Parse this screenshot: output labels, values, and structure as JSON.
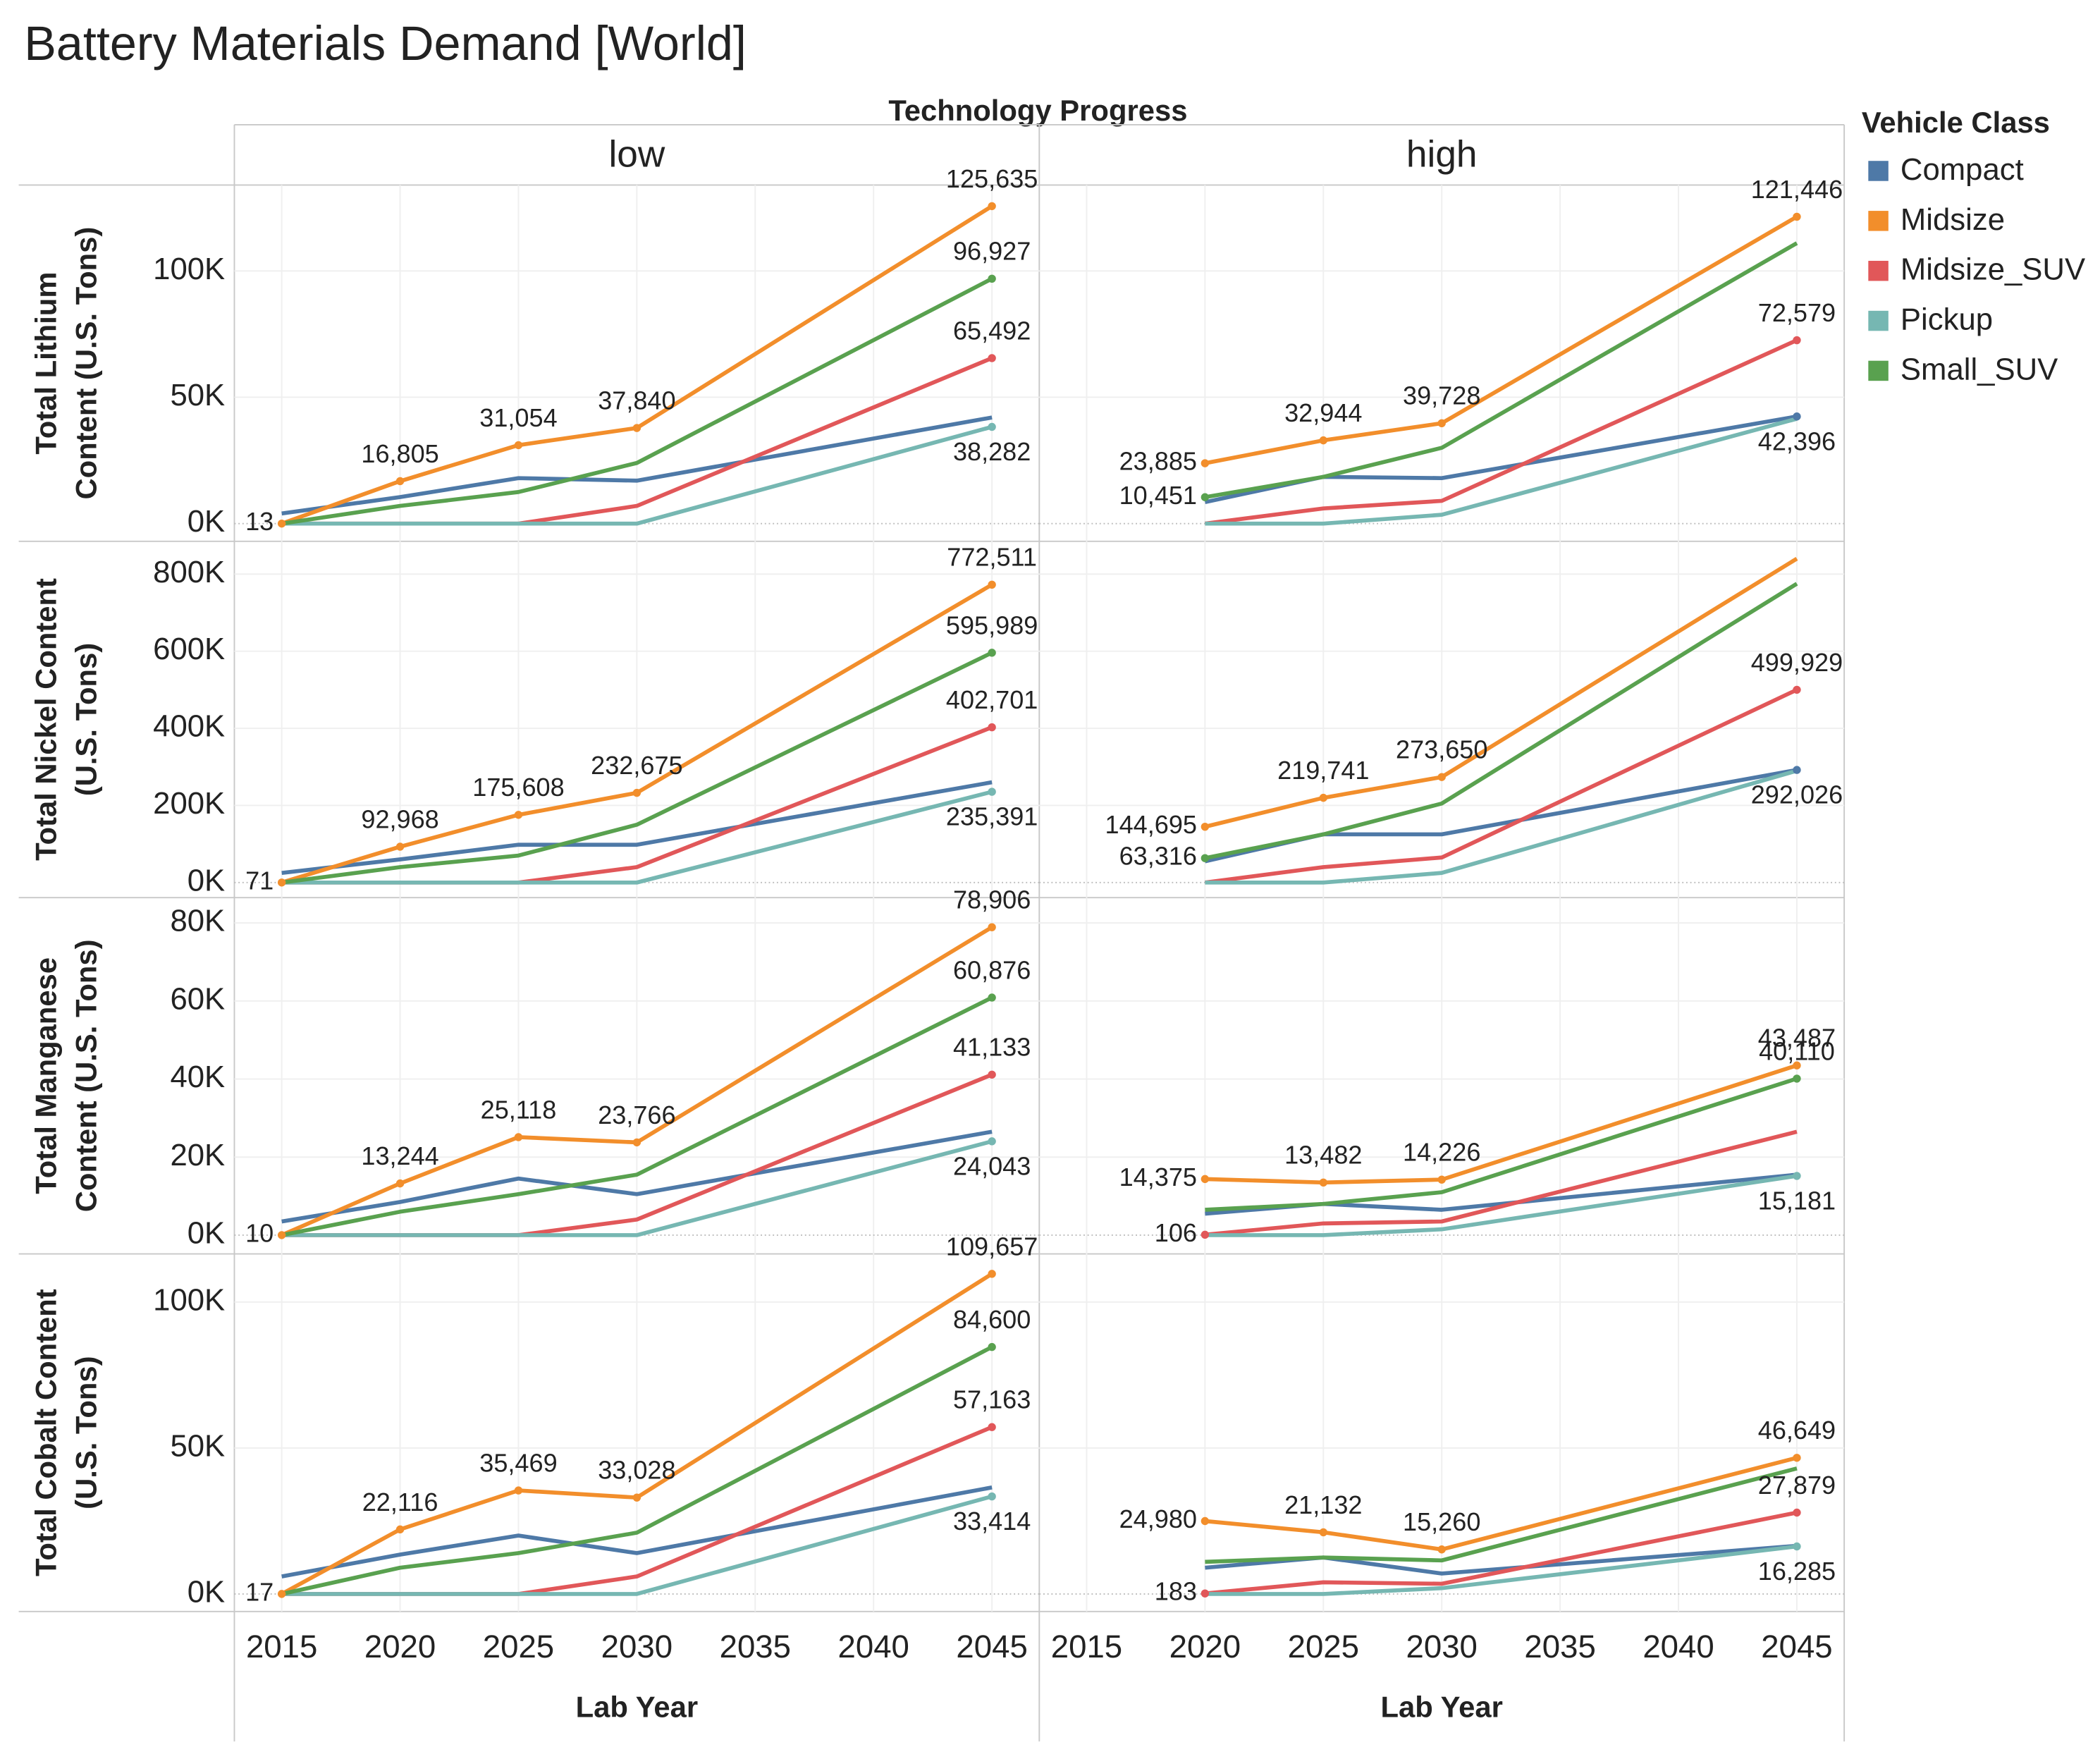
{
  "title": "Battery Materials Demand [World]",
  "column_title": "Technology Progress",
  "legend_title": "Vehicle Class",
  "chart_data": [
    {
      "type": "line",
      "title": "low",
      "y_label": [
        "Total Lithium",
        "Content (U.S. Tons)"
      ],
      "x": [
        2015,
        2020,
        2025,
        2030,
        2045
      ],
      "xlim": [
        2013,
        2047
      ],
      "xticks": [
        2015,
        2020,
        2025,
        2030,
        2035,
        2040,
        2045
      ],
      "ylim": [
        -7000,
        134000
      ],
      "yticks": [
        {
          "value": 0,
          "label": "0K"
        },
        {
          "value": 50000,
          "label": "50K"
        },
        {
          "value": 100000,
          "label": "100K"
        }
      ],
      "series": [
        {
          "name": "Compact",
          "color": "#4e79a7",
          "values": [
            4000,
            10500,
            18000,
            17000,
            42000
          ],
          "value_labels": [
            null,
            null,
            null,
            null,
            null
          ]
        },
        {
          "name": "Midsize",
          "color": "#f28e2b",
          "values": [
            13,
            16805,
            31054,
            37840,
            125635
          ],
          "value_labels": [
            "13",
            "16,805",
            "31,054",
            "37,840",
            "125,635"
          ]
        },
        {
          "name": "Midsize_SUV",
          "color": "#e15759",
          "values": [
            0,
            0,
            0,
            7000,
            65492
          ],
          "value_labels": [
            null,
            null,
            null,
            null,
            "65,492"
          ]
        },
        {
          "name": "Pickup",
          "color": "#76b7b2",
          "values": [
            0,
            0,
            0,
            0,
            38282
          ],
          "value_labels": [
            null,
            null,
            null,
            null,
            "38,282"
          ]
        },
        {
          "name": "Small_SUV",
          "color": "#59a14f",
          "values": [
            0,
            7000,
            12500,
            24000,
            96927
          ],
          "value_labels": [
            null,
            null,
            null,
            null,
            "96,927"
          ]
        }
      ]
    },
    {
      "type": "line",
      "title": "high",
      "x": [
        2020,
        2025,
        2030,
        2045
      ],
      "xlim": [
        2013,
        2047
      ],
      "xticks": [
        2015,
        2020,
        2025,
        2030,
        2035,
        2040,
        2045
      ],
      "ylim": [
        -7000,
        134000
      ],
      "yticks": [
        {
          "value": 0,
          "label": "0K"
        },
        {
          "value": 50000,
          "label": "50K"
        },
        {
          "value": 100000,
          "label": "100K"
        }
      ],
      "series": [
        {
          "name": "Compact",
          "color": "#4e79a7",
          "values": [
            8500,
            18500,
            18000,
            42396
          ],
          "value_labels": [
            null,
            null,
            null,
            "42,396"
          ]
        },
        {
          "name": "Midsize",
          "color": "#f28e2b",
          "values": [
            23885,
            32944,
            39728,
            121446
          ],
          "value_labels": [
            "23,885",
            "32,944",
            "39,728",
            "121,446"
          ]
        },
        {
          "name": "Midsize_SUV",
          "color": "#e15759",
          "values": [
            0,
            6000,
            9000,
            72579
          ],
          "value_labels": [
            null,
            null,
            null,
            "72,579"
          ]
        },
        {
          "name": "Pickup",
          "color": "#76b7b2",
          "values": [
            0,
            0,
            3500,
            41500
          ],
          "value_labels": [
            null,
            null,
            null,
            null
          ]
        },
        {
          "name": "Small_SUV",
          "color": "#59a14f",
          "values": [
            10451,
            18500,
            30000,
            111000
          ],
          "value_labels": [
            "10,451",
            null,
            null,
            null
          ]
        }
      ]
    },
    {
      "type": "line",
      "y_label": [
        "Total Nickel Content",
        "(U.S. Tons)"
      ],
      "x": [
        2015,
        2020,
        2025,
        2030,
        2045
      ],
      "xlim": [
        2013,
        2047
      ],
      "xticks": [
        2015,
        2020,
        2025,
        2030,
        2035,
        2040,
        2045
      ],
      "ylim": [
        -39000,
        885000
      ],
      "yticks": [
        {
          "value": 0,
          "label": "0K"
        },
        {
          "value": 200000,
          "label": "200K"
        },
        {
          "value": 400000,
          "label": "400K"
        },
        {
          "value": 600000,
          "label": "600K"
        },
        {
          "value": 800000,
          "label": "800K"
        }
      ],
      "series": [
        {
          "name": "Compact",
          "color": "#4e79a7",
          "values": [
            25000,
            60000,
            98000,
            98000,
            260000
          ],
          "value_labels": [
            null,
            null,
            null,
            null,
            null
          ]
        },
        {
          "name": "Midsize",
          "color": "#f28e2b",
          "values": [
            71,
            92968,
            175608,
            232675,
            772511
          ],
          "value_labels": [
            "71",
            "92,968",
            "175,608",
            "232,675",
            "772,511"
          ]
        },
        {
          "name": "Midsize_SUV",
          "color": "#e15759",
          "values": [
            0,
            0,
            0,
            40000,
            402701
          ],
          "value_labels": [
            null,
            null,
            null,
            null,
            "402,701"
          ]
        },
        {
          "name": "Pickup",
          "color": "#76b7b2",
          "values": [
            0,
            0,
            0,
            0,
            235391
          ],
          "value_labels": [
            null,
            null,
            null,
            null,
            "235,391"
          ]
        },
        {
          "name": "Small_SUV",
          "color": "#59a14f",
          "values": [
            0,
            40000,
            70000,
            150000,
            595989
          ],
          "value_labels": [
            null,
            null,
            null,
            null,
            "595,989"
          ]
        }
      ]
    },
    {
      "type": "line",
      "x": [
        2020,
        2025,
        2030,
        2045
      ],
      "xlim": [
        2013,
        2047
      ],
      "xticks": [
        2015,
        2020,
        2025,
        2030,
        2035,
        2040,
        2045
      ],
      "ylim": [
        -39000,
        885000
      ],
      "yticks": [
        {
          "value": 0,
          "label": "0K"
        },
        {
          "value": 200000,
          "label": "200K"
        },
        {
          "value": 400000,
          "label": "400K"
        },
        {
          "value": 600000,
          "label": "600K"
        },
        {
          "value": 800000,
          "label": "800K"
        }
      ],
      "series": [
        {
          "name": "Compact",
          "color": "#4e79a7",
          "values": [
            55000,
            125000,
            125000,
            292026
          ],
          "value_labels": [
            null,
            null,
            null,
            "292,026"
          ]
        },
        {
          "name": "Midsize",
          "color": "#f28e2b",
          "values": [
            144695,
            219741,
            273650,
            840000
          ],
          "value_labels": [
            "144,695",
            "219,741",
            "273,650",
            null
          ]
        },
        {
          "name": "Midsize_SUV",
          "color": "#e15759",
          "values": [
            0,
            40000,
            65000,
            499929
          ],
          "value_labels": [
            null,
            null,
            null,
            "499,929"
          ]
        },
        {
          "name": "Pickup",
          "color": "#76b7b2",
          "values": [
            0,
            0,
            25000,
            290000
          ],
          "value_labels": [
            null,
            null,
            null,
            null
          ]
        },
        {
          "name": "Small_SUV",
          "color": "#59a14f",
          "values": [
            63316,
            125000,
            205000,
            775000
          ],
          "value_labels": [
            "63,316",
            null,
            null,
            null
          ]
        }
      ]
    },
    {
      "type": "line",
      "y_label": [
        "Total Manganese",
        "Content (U.S. Tons)"
      ],
      "x": [
        2015,
        2020,
        2025,
        2030,
        2045
      ],
      "xlim": [
        2013,
        2047
      ],
      "xticks": [
        2015,
        2020,
        2025,
        2030,
        2035,
        2040,
        2045
      ],
      "ylim": [
        -4800,
        86500
      ],
      "yticks": [
        {
          "value": 0,
          "label": "0K"
        },
        {
          "value": 20000,
          "label": "20K"
        },
        {
          "value": 40000,
          "label": "40K"
        },
        {
          "value": 60000,
          "label": "60K"
        },
        {
          "value": 80000,
          "label": "80K"
        }
      ],
      "series": [
        {
          "name": "Compact",
          "color": "#4e79a7",
          "values": [
            3500,
            8500,
            14500,
            10500,
            26500
          ],
          "value_labels": [
            null,
            null,
            null,
            null,
            null
          ]
        },
        {
          "name": "Midsize",
          "color": "#f28e2b",
          "values": [
            10,
            13244,
            25118,
            23766,
            78906
          ],
          "value_labels": [
            "10",
            "13,244",
            "25,118",
            "23,766",
            "78,906"
          ]
        },
        {
          "name": "Midsize_SUV",
          "color": "#e15759",
          "values": [
            0,
            0,
            0,
            4000,
            41133
          ],
          "value_labels": [
            null,
            null,
            null,
            null,
            "41,133"
          ]
        },
        {
          "name": "Pickup",
          "color": "#76b7b2",
          "values": [
            0,
            0,
            0,
            0,
            24043
          ],
          "value_labels": [
            null,
            null,
            null,
            null,
            "24,043"
          ]
        },
        {
          "name": "Small_SUV",
          "color": "#59a14f",
          "values": [
            0,
            6000,
            10500,
            15500,
            60876
          ],
          "value_labels": [
            null,
            null,
            null,
            null,
            "60,876"
          ]
        }
      ]
    },
    {
      "type": "line",
      "x": [
        2020,
        2025,
        2030,
        2045
      ],
      "xlim": [
        2013,
        2047
      ],
      "xticks": [
        2015,
        2020,
        2025,
        2030,
        2035,
        2040,
        2045
      ],
      "ylim": [
        -4800,
        86500
      ],
      "yticks": [
        {
          "value": 0,
          "label": "0K"
        },
        {
          "value": 20000,
          "label": "20K"
        },
        {
          "value": 40000,
          "label": "40K"
        },
        {
          "value": 60000,
          "label": "60K"
        },
        {
          "value": 80000,
          "label": "80K"
        }
      ],
      "series": [
        {
          "name": "Compact",
          "color": "#4e79a7",
          "values": [
            5500,
            8000,
            6500,
            15500
          ],
          "value_labels": [
            null,
            null,
            null,
            null
          ]
        },
        {
          "name": "Midsize",
          "color": "#f28e2b",
          "values": [
            14375,
            13482,
            14226,
            43487
          ],
          "value_labels": [
            "14,375",
            "13,482",
            "14,226",
            "43,487"
          ]
        },
        {
          "name": "Midsize_SUV",
          "color": "#e15759",
          "values": [
            106,
            3000,
            3500,
            26500
          ],
          "value_labels": [
            "106",
            null,
            null,
            null
          ]
        },
        {
          "name": "Pickup",
          "color": "#76b7b2",
          "values": [
            0,
            0,
            1500,
            15181
          ],
          "value_labels": [
            null,
            null,
            null,
            "15,181"
          ]
        },
        {
          "name": "Small_SUV",
          "color": "#59a14f",
          "values": [
            6500,
            8000,
            11000,
            40110
          ],
          "value_labels": [
            null,
            null,
            null,
            "40,110"
          ]
        }
      ]
    },
    {
      "type": "line",
      "y_label": [
        "Total Cobalt Content",
        "(U.S. Tons)"
      ],
      "x_label": "Lab Year",
      "x": [
        2015,
        2020,
        2025,
        2030,
        2045
      ],
      "xlim": [
        2013,
        2047
      ],
      "xticks": [
        2015,
        2020,
        2025,
        2030,
        2035,
        2040,
        2045
      ],
      "ylim": [
        -6000,
        116500
      ],
      "yticks": [
        {
          "value": 0,
          "label": "0K"
        },
        {
          "value": 50000,
          "label": "50K"
        },
        {
          "value": 100000,
          "label": "100K"
        }
      ],
      "series": [
        {
          "name": "Compact",
          "color": "#4e79a7",
          "values": [
            6000,
            13500,
            20000,
            14000,
            36500
          ],
          "value_labels": [
            null,
            null,
            null,
            null,
            null
          ]
        },
        {
          "name": "Midsize",
          "color": "#f28e2b",
          "values": [
            17,
            22116,
            35469,
            33028,
            109657
          ],
          "value_labels": [
            "17",
            "22,116",
            "35,469",
            "33,028",
            "109,657"
          ]
        },
        {
          "name": "Midsize_SUV",
          "color": "#e15759",
          "values": [
            0,
            0,
            0,
            6000,
            57163
          ],
          "value_labels": [
            null,
            null,
            null,
            null,
            "57,163"
          ]
        },
        {
          "name": "Pickup",
          "color": "#76b7b2",
          "values": [
            0,
            0,
            0,
            0,
            33414
          ],
          "value_labels": [
            null,
            null,
            null,
            null,
            "33,414"
          ]
        },
        {
          "name": "Small_SUV",
          "color": "#59a14f",
          "values": [
            0,
            9000,
            14000,
            21000,
            84600
          ],
          "value_labels": [
            null,
            null,
            null,
            null,
            "84,600"
          ]
        }
      ]
    },
    {
      "type": "line",
      "x_label": "Lab Year",
      "x": [
        2020,
        2025,
        2030,
        2045
      ],
      "xlim": [
        2013,
        2047
      ],
      "xticks": [
        2015,
        2020,
        2025,
        2030,
        2035,
        2040,
        2045
      ],
      "ylim": [
        -6000,
        116500
      ],
      "yticks": [
        {
          "value": 0,
          "label": "0K"
        },
        {
          "value": 50000,
          "label": "50K"
        },
        {
          "value": 100000,
          "label": "100K"
        }
      ],
      "series": [
        {
          "name": "Compact",
          "color": "#4e79a7",
          "values": [
            9000,
            12500,
            7000,
            16500
          ],
          "value_labels": [
            null,
            null,
            null,
            null
          ]
        },
        {
          "name": "Midsize",
          "color": "#f28e2b",
          "values": [
            24980,
            21132,
            15260,
            46649
          ],
          "value_labels": [
            "24,980",
            "21,132",
            "15,260",
            "46,649"
          ]
        },
        {
          "name": "Midsize_SUV",
          "color": "#e15759",
          "values": [
            183,
            4000,
            3500,
            27879
          ],
          "value_labels": [
            "183",
            null,
            null,
            "27,879"
          ]
        },
        {
          "name": "Pickup",
          "color": "#76b7b2",
          "values": [
            0,
            0,
            2000,
            16285
          ],
          "value_labels": [
            null,
            null,
            null,
            "16,285"
          ]
        },
        {
          "name": "Small_SUV",
          "color": "#59a14f",
          "values": [
            11000,
            12500,
            11500,
            43000
          ],
          "value_labels": [
            null,
            null,
            null,
            null
          ]
        }
      ]
    }
  ]
}
